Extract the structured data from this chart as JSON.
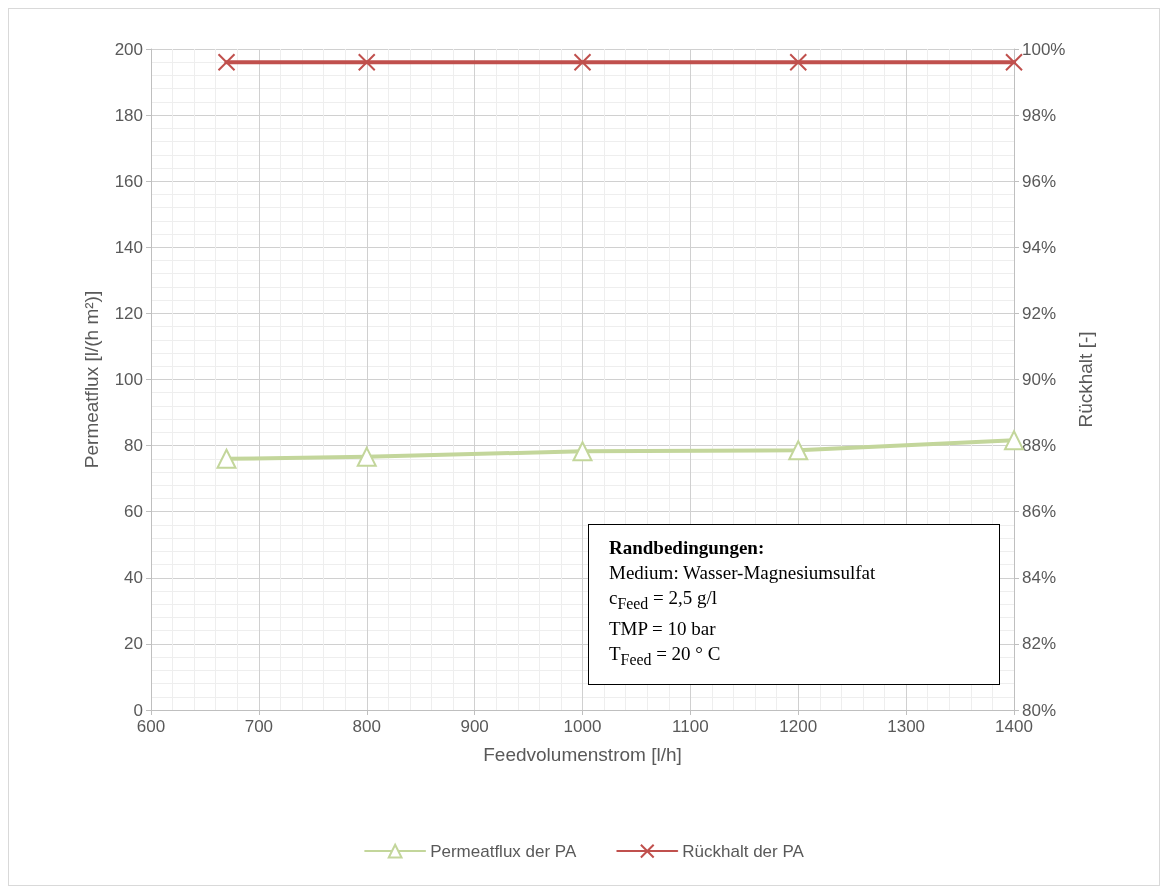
{
  "chart_data": {
    "type": "line",
    "xlabel": "Feedvolumenstrom [l/h]",
    "ylabel": "Permeatflux [l/(h m²)]",
    "y2label": "Rückhalt [-]",
    "xlim": [
      600,
      1400
    ],
    "xticks": [
      600,
      700,
      800,
      900,
      1000,
      1100,
      1200,
      1300,
      1400
    ],
    "ylim": [
      0,
      200
    ],
    "yticks": [
      0,
      20,
      40,
      60,
      80,
      100,
      120,
      140,
      160,
      180,
      200
    ],
    "y2lim": [
      80,
      100
    ],
    "y2ticks": [
      {
        "value": 80,
        "label": "80%"
      },
      {
        "value": 82,
        "label": "82%"
      },
      {
        "value": 84,
        "label": "84%"
      },
      {
        "value": 86,
        "label": "86%"
      },
      {
        "value": 88,
        "label": "88%"
      },
      {
        "value": 90,
        "label": "90%"
      },
      {
        "value": 92,
        "label": "92%"
      },
      {
        "value": 94,
        "label": "94%"
      },
      {
        "value": 96,
        "label": "96%"
      },
      {
        "value": 98,
        "label": "98%"
      },
      {
        "value": 100,
        "label": "100%"
      }
    ],
    "x": [
      670,
      800,
      1000,
      1200,
      1400
    ],
    "series": [
      {
        "name": "Permeatflux der PA",
        "color": "#c3d69b",
        "marker": "triangle",
        "values": [
          76.0,
          76.6,
          78.3,
          78.6,
          81.6
        ]
      },
      {
        "name": "Rückhalt der PA",
        "color": "#c0504d",
        "marker": "cross",
        "axis": "y2",
        "values": [
          99.6,
          99.6,
          99.6,
          99.6,
          99.6
        ]
      }
    ],
    "annotations": [
      "Randbedingungen:",
      "Medium: Wasser-Magnesiumsulfat",
      "c$_{Feed}$ = 2,5 g/l",
      "TMP = 10 bar",
      "T$_{Feed}$ = 20 ° C"
    ],
    "grid": true,
    "legend": "bottom"
  }
}
